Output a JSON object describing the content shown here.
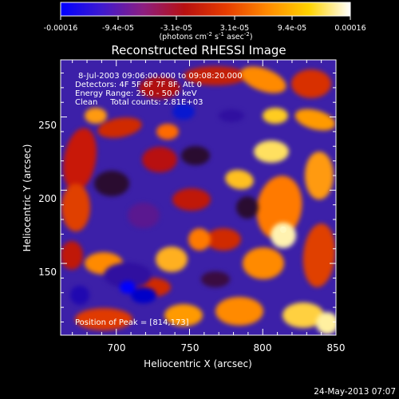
{
  "colorbar": {
    "tick_labels": [
      "-0.00016",
      "-9.4e-05",
      "-3.1e-05",
      "3.1e-05",
      "9.4e-05",
      "0.00016"
    ],
    "unit_label_main": "(photons cm",
    "unit_label_rest": "s",
    "unit_label_tail": "asec",
    "unit_label_close": ")",
    "unit_exp_1": "-2",
    "unit_exp_2": "-1",
    "unit_exp_3": "-2",
    "stops": [
      "#0000ff",
      "#3f1ad0",
      "#8d1e80",
      "#b81010",
      "#e63c00",
      "#ff8a00",
      "#ffd300",
      "#ffffff"
    ]
  },
  "chart_data": {
    "type": "heatmap",
    "title": "Reconstructed RHESSI Image",
    "xlabel": "Heliocentric X (arcsec)",
    "ylabel": "Heliocentric Y (arcsec)",
    "xlim": [
      662,
      850
    ],
    "ylim": [
      101,
      289
    ],
    "x_ticks": [
      700,
      750,
      800,
      850
    ],
    "y_ticks": [
      150,
      200,
      250
    ],
    "colorscale_range": [
      -0.00016,
      0.00016
    ],
    "peak": [
      814,
      173
    ],
    "annotations": [
      "8-Jul-2003 09:06:00.000 to 09:08:20.000",
      "Detectors: 4F 5F 6F 7F 8F, Att 0",
      "Energy Range: 25.0 - 50.0 keV",
      "Clean     Total counts: 2.81E+03"
    ],
    "peak_label": "Position of Peak = [814,173]"
  },
  "timestamp": "24-May-2013 07:07"
}
